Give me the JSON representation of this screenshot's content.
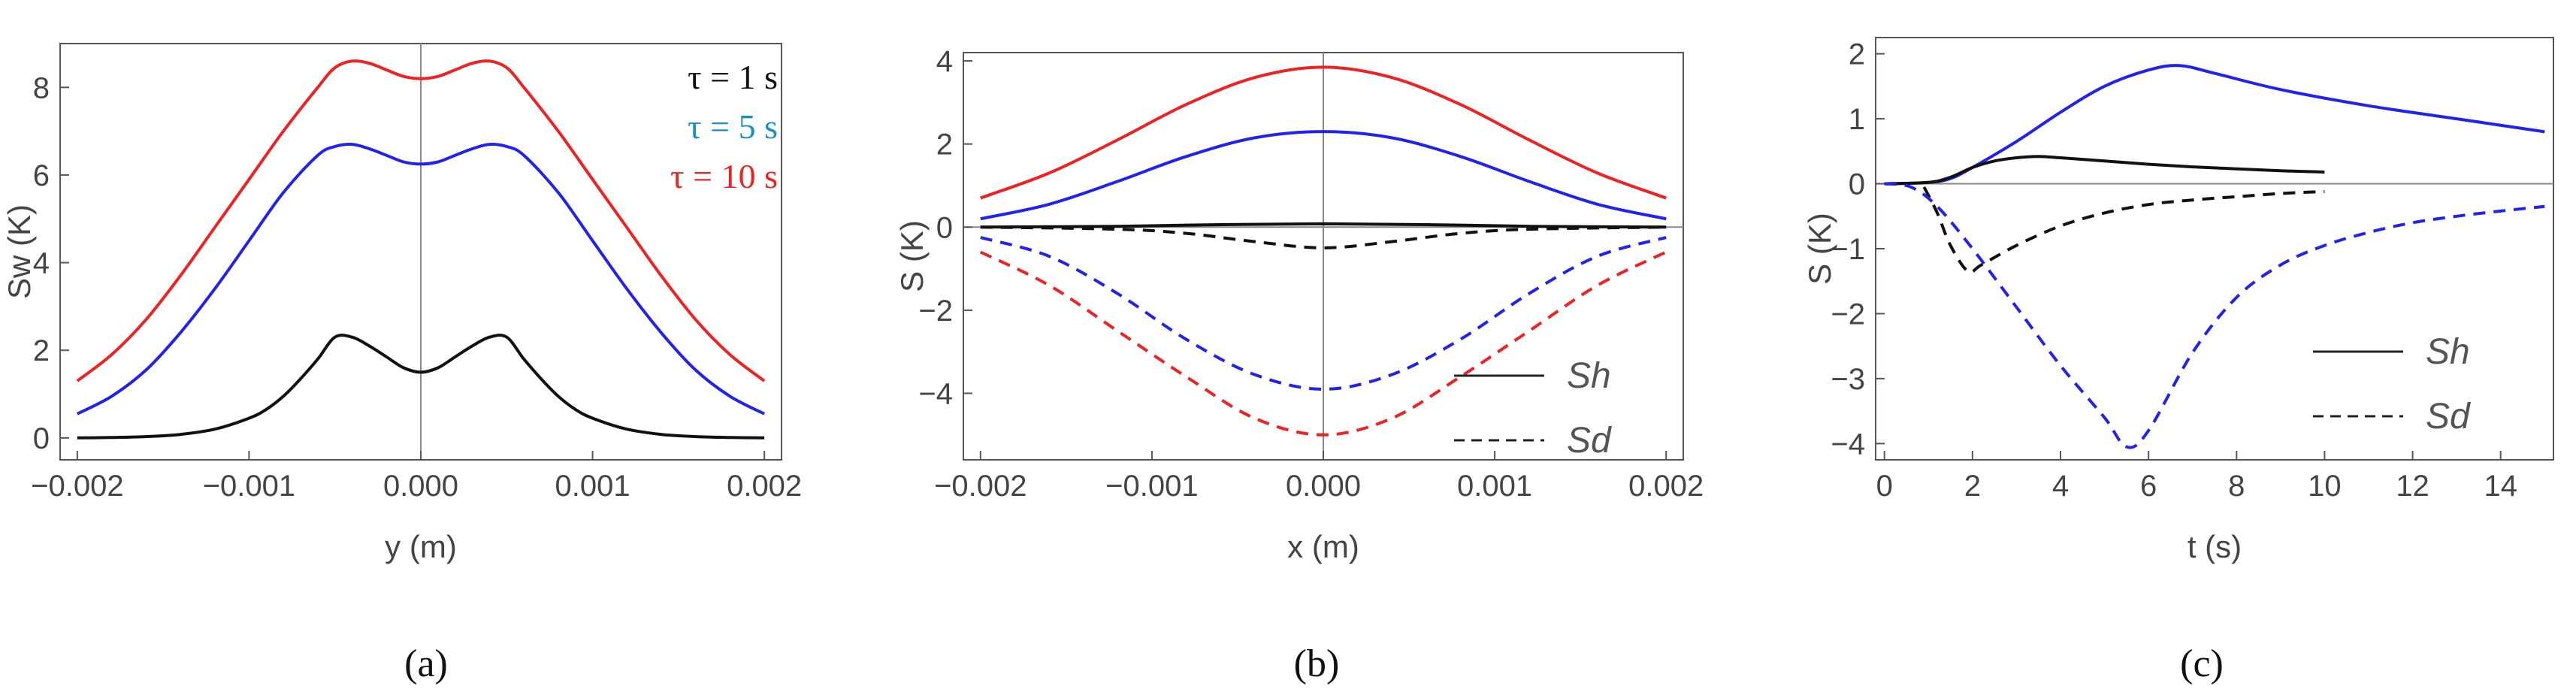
{
  "colors": {
    "red": "#ee2222",
    "blue": "#2222ee",
    "black": "#111111",
    "axis": "#555555",
    "refline": "#888888"
  },
  "chart_data": [
    {
      "type": "line",
      "panel": "a",
      "caption": "(a)",
      "xlabel": "y (m)",
      "ylabel": "Sw (K)",
      "xlim": [
        -0.0021,
        0.0021
      ],
      "ylim": [
        -0.5,
        9
      ],
      "xticks": [
        -0.002,
        -0.001,
        0.0,
        0.001,
        0.002
      ],
      "xtick_labels": [
        "−0.002",
        "−0.001",
        "0.000",
        "0.001",
        "0.002"
      ],
      "yticks": [
        0,
        2,
        4,
        6,
        8
      ],
      "ytick_labels": [
        "0",
        "2",
        "4",
        "6",
        "8"
      ],
      "vline": 0,
      "legend": [
        {
          "label": "τ = 1 s",
          "color": "#111111"
        },
        {
          "label": "τ = 5 s",
          "color": "#1a8fc4"
        },
        {
          "label": "τ = 10 s",
          "color": "#ee2222"
        }
      ],
      "series": [
        {
          "name": "τ = 10 s",
          "color": "#ee2222",
          "dash": false,
          "x": [
            -0.002,
            -0.0018,
            -0.0016,
            -0.0014,
            -0.0012,
            -0.001,
            -0.0008,
            -0.0006,
            -0.0005,
            -0.0004,
            -0.0003,
            -0.0002,
            -0.0001,
            0,
            0.0001,
            0.0002,
            0.0003,
            0.0004,
            0.0005,
            0.0006,
            0.0008,
            0.001,
            0.0012,
            0.0014,
            0.0016,
            0.0018,
            0.002
          ],
          "y": [
            1.3,
            1.9,
            2.7,
            3.7,
            4.8,
            5.9,
            7.0,
            8.0,
            8.45,
            8.6,
            8.55,
            8.4,
            8.25,
            8.2,
            8.25,
            8.4,
            8.55,
            8.6,
            8.45,
            8.0,
            7.0,
            5.9,
            4.8,
            3.7,
            2.7,
            1.9,
            1.3
          ]
        },
        {
          "name": "τ = 5 s",
          "color": "#2222ee",
          "dash": false,
          "x": [
            -0.002,
            -0.0018,
            -0.0016,
            -0.0014,
            -0.0012,
            -0.001,
            -0.0008,
            -0.0006,
            -0.0005,
            -0.0004,
            -0.0003,
            -0.0002,
            -0.0001,
            0,
            0.0001,
            0.0002,
            0.0003,
            0.0004,
            0.0005,
            0.0006,
            0.0008,
            0.001,
            0.0012,
            0.0014,
            0.0016,
            0.0018,
            0.002
          ],
          "y": [
            0.55,
            0.95,
            1.55,
            2.4,
            3.4,
            4.5,
            5.6,
            6.45,
            6.65,
            6.7,
            6.6,
            6.45,
            6.3,
            6.25,
            6.3,
            6.45,
            6.6,
            6.7,
            6.65,
            6.45,
            5.6,
            4.5,
            3.4,
            2.4,
            1.55,
            0.95,
            0.55
          ]
        },
        {
          "name": "τ = 1 s",
          "color": "#111111",
          "dash": false,
          "x": [
            -0.002,
            -0.0018,
            -0.0016,
            -0.0014,
            -0.0012,
            -0.001,
            -0.0009,
            -0.0008,
            -0.0007,
            -0.0006,
            -0.0005,
            -0.0004,
            -0.0003,
            -0.0002,
            -0.0001,
            0,
            0.0001,
            0.0002,
            0.0003,
            0.0004,
            0.0005,
            0.0006,
            0.0007,
            0.0008,
            0.0009,
            0.001,
            0.0012,
            0.0014,
            0.0016,
            0.0018,
            0.002
          ],
          "y": [
            0.0,
            0.01,
            0.03,
            0.08,
            0.2,
            0.45,
            0.65,
            0.95,
            1.35,
            1.8,
            2.3,
            2.3,
            2.1,
            1.85,
            1.6,
            1.5,
            1.6,
            1.85,
            2.1,
            2.3,
            2.3,
            1.8,
            1.35,
            0.95,
            0.65,
            0.45,
            0.2,
            0.08,
            0.03,
            0.01,
            0.0
          ]
        }
      ]
    },
    {
      "type": "line",
      "panel": "b",
      "caption": "(b)",
      "xlabel": "x (m)",
      "ylabel": "S (K)",
      "xlim": [
        -0.0021,
        0.0021
      ],
      "ylim": [
        -5.6,
        4.2
      ],
      "xticks": [
        -0.002,
        -0.001,
        0.0,
        0.001,
        0.002
      ],
      "xtick_labels": [
        "−0.002",
        "−0.001",
        "0.000",
        "0.001",
        "0.002"
      ],
      "yticks": [
        -4,
        -2,
        0,
        2,
        4
      ],
      "ytick_labels": [
        "−4",
        "−2",
        "0",
        "2",
        "4"
      ],
      "vline": 0,
      "hline": 0,
      "legend": [
        {
          "label": "Sh",
          "dash": false
        },
        {
          "label": "Sd",
          "dash": true
        }
      ],
      "series": [
        {
          "name": "Sh red",
          "color": "#ee2222",
          "dash": false,
          "x": [
            -0.002,
            -0.0016,
            -0.0012,
            -0.0008,
            -0.0004,
            0,
            0.0004,
            0.0008,
            0.0012,
            0.0016,
            0.002
          ],
          "y": [
            0.7,
            1.3,
            2.1,
            2.95,
            3.6,
            3.85,
            3.6,
            2.95,
            2.1,
            1.3,
            0.7
          ]
        },
        {
          "name": "Sh blue",
          "color": "#2222ee",
          "dash": false,
          "x": [
            -0.002,
            -0.0016,
            -0.0012,
            -0.0008,
            -0.0004,
            0,
            0.0004,
            0.0008,
            0.0012,
            0.0016,
            0.002
          ],
          "y": [
            0.2,
            0.55,
            1.1,
            1.7,
            2.15,
            2.3,
            2.15,
            1.7,
            1.1,
            0.55,
            0.2
          ]
        },
        {
          "name": "Sh black",
          "color": "#111111",
          "dash": false,
          "x": [
            -0.002,
            -0.0012,
            -0.0006,
            0,
            0.0006,
            0.0012,
            0.002
          ],
          "y": [
            0.0,
            0.02,
            0.06,
            0.08,
            0.06,
            0.02,
            0.0
          ]
        },
        {
          "name": "Sd black",
          "color": "#111111",
          "dash": true,
          "x": [
            -0.002,
            -0.0012,
            -0.0008,
            -0.0004,
            0,
            0.0004,
            0.0008,
            0.0012,
            0.002
          ],
          "y": [
            0.0,
            -0.05,
            -0.15,
            -0.35,
            -0.5,
            -0.35,
            -0.15,
            -0.05,
            0.0
          ]
        },
        {
          "name": "Sd blue",
          "color": "#2222ee",
          "dash": true,
          "x": [
            -0.002,
            -0.0016,
            -0.0012,
            -0.0008,
            -0.0004,
            0,
            0.0004,
            0.0008,
            0.0012,
            0.0016,
            0.002
          ],
          "y": [
            -0.25,
            -0.7,
            -1.6,
            -2.7,
            -3.55,
            -3.9,
            -3.55,
            -2.7,
            -1.6,
            -0.7,
            -0.25
          ]
        },
        {
          "name": "Sd red",
          "color": "#ee2222",
          "dash": true,
          "x": [
            -0.002,
            -0.0016,
            -0.0012,
            -0.0008,
            -0.0004,
            0,
            0.0004,
            0.0008,
            0.0012,
            0.0016,
            0.002
          ],
          "y": [
            -0.6,
            -1.4,
            -2.5,
            -3.6,
            -4.6,
            -5.0,
            -4.6,
            -3.6,
            -2.5,
            -1.4,
            -0.6
          ]
        }
      ]
    },
    {
      "type": "line",
      "panel": "c",
      "caption": "(c)",
      "xlabel": "t (s)",
      "ylabel": "S (K)",
      "xlim": [
        -0.2,
        15.2
      ],
      "ylim": [
        -4.25,
        2.25
      ],
      "xticks": [
        0,
        2,
        4,
        6,
        8,
        10,
        12,
        14
      ],
      "xtick_labels": [
        "0",
        "2",
        "4",
        "6",
        "8",
        "10",
        "12",
        "14"
      ],
      "yticks": [
        -4,
        -3,
        -2,
        -1,
        0,
        1,
        2
      ],
      "ytick_labels": [
        "−4",
        "−3",
        "−2",
        "−1",
        "0",
        "1",
        "2"
      ],
      "hline": 0,
      "legend": [
        {
          "label": "Sh",
          "dash": false
        },
        {
          "label": "Sd",
          "dash": true
        }
      ],
      "series": [
        {
          "name": "Sh blue",
          "color": "#2222ee",
          "dash": false,
          "x": [
            0,
            1,
            1.5,
            2,
            3,
            4,
            5,
            6,
            6.7,
            7.5,
            9,
            11,
            13,
            15
          ],
          "y": [
            0,
            0.02,
            0.08,
            0.25,
            0.65,
            1.1,
            1.5,
            1.75,
            1.82,
            1.7,
            1.45,
            1.2,
            1.0,
            0.8
          ]
        },
        {
          "name": "Sh black",
          "color": "#111111",
          "dash": false,
          "x": [
            0,
            1,
            1.5,
            2,
            2.5,
            3,
            3.5,
            4,
            5,
            6,
            7,
            8,
            9,
            10
          ],
          "y": [
            0,
            0.02,
            0.1,
            0.25,
            0.35,
            0.4,
            0.42,
            0.4,
            0.35,
            0.3,
            0.26,
            0.23,
            0.2,
            0.18
          ]
        },
        {
          "name": "Sd black",
          "color": "#111111",
          "dash": true,
          "x": [
            0.9,
            1.2,
            1.5,
            1.9,
            2.2,
            3,
            4,
            5,
            6,
            7,
            8,
            9,
            10
          ],
          "y": [
            -0.05,
            -0.45,
            -0.95,
            -1.35,
            -1.25,
            -0.95,
            -0.65,
            -0.45,
            -0.32,
            -0.25,
            -0.2,
            -0.15,
            -0.12
          ]
        },
        {
          "name": "Sd blue",
          "color": "#2222ee",
          "dash": true,
          "x": [
            0,
            0.6,
            1.2,
            2,
            3,
            4,
            5,
            5.5,
            6,
            7,
            8,
            9,
            10,
            11,
            12,
            13,
            14,
            15
          ],
          "y": [
            0,
            -0.05,
            -0.35,
            -1.0,
            -1.9,
            -2.8,
            -3.6,
            -4.05,
            -3.8,
            -2.6,
            -1.75,
            -1.25,
            -0.95,
            -0.75,
            -0.6,
            -0.5,
            -0.42,
            -0.35
          ]
        }
      ]
    }
  ]
}
